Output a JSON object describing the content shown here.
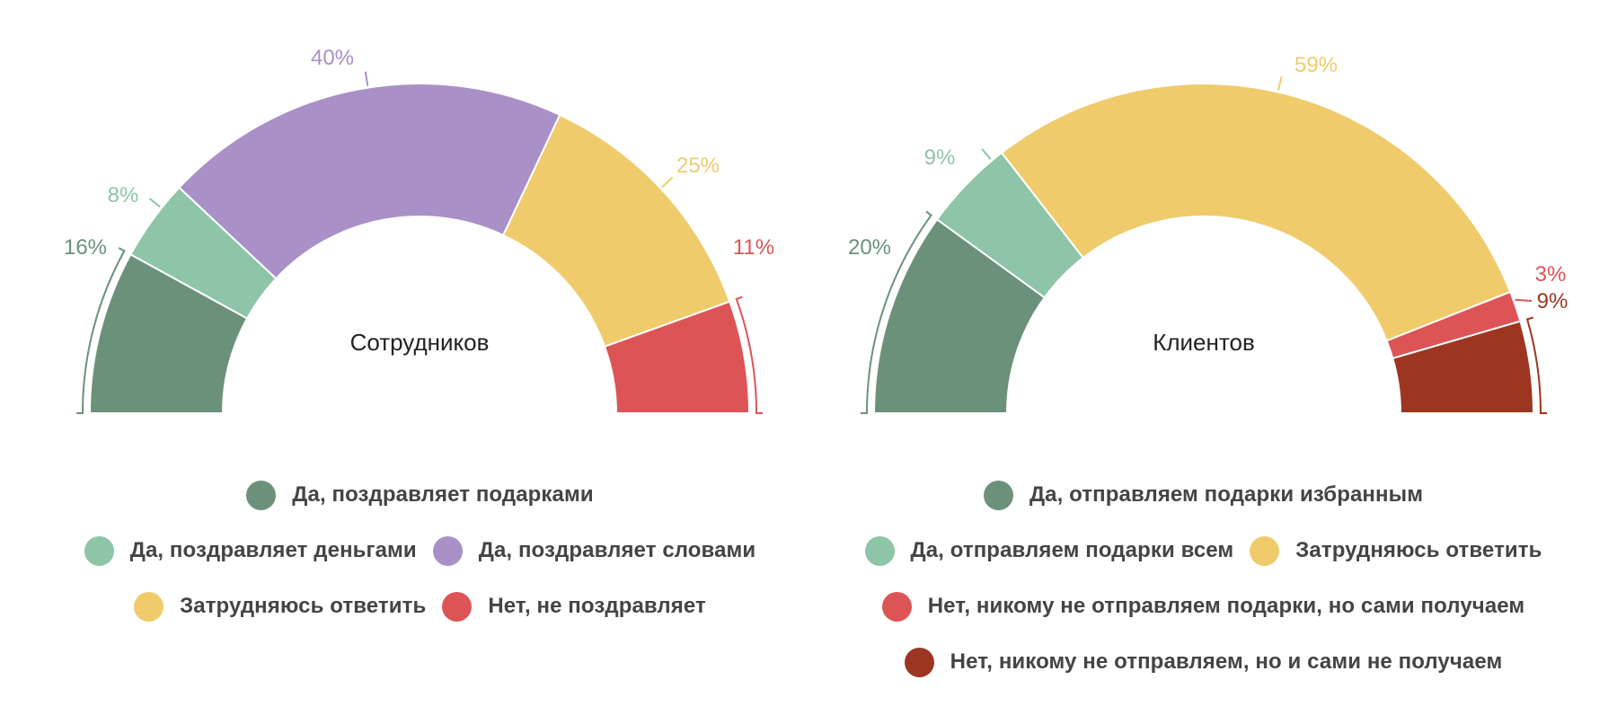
{
  "chart_data": [
    {
      "type": "pie",
      "variant": "semi-donut",
      "title": "",
      "center_label": "Сотрудников",
      "slices": [
        {
          "label": "Да, поздравляет подарками",
          "value": 16,
          "value_label": "16%",
          "color": "#6b917b"
        },
        {
          "label": "Да, поздравляет деньгами",
          "value": 8,
          "value_label": "8%",
          "color": "#8ec4a8"
        },
        {
          "label": "Да, поздравляет словами",
          "value": 40,
          "value_label": "40%",
          "color": "#a990c7"
        },
        {
          "label": "Затрудняюсь ответить",
          "value": 25,
          "value_label": "25%",
          "color": "#efcb6b"
        },
        {
          "label": "Нет, не поздравляет",
          "value": 11,
          "value_label": "11%",
          "color": "#dd5457"
        }
      ],
      "legend_rows": [
        [
          0
        ],
        [
          1,
          2
        ],
        [
          3,
          4
        ]
      ],
      "legend_position": "bottom"
    },
    {
      "type": "pie",
      "variant": "semi-donut",
      "title": "",
      "center_label": "Клиентов",
      "slices": [
        {
          "label": "Да, отправляем подарки избранным",
          "value": 20,
          "value_label": "20%",
          "color": "#6b917b"
        },
        {
          "label": "Да, отправляем подарки всем",
          "value": 9,
          "value_label": "9%",
          "color": "#8ec4a8"
        },
        {
          "label": "Затрудняюсь ответить",
          "value": 59,
          "value_label": "59%",
          "color": "#efcb6b"
        },
        {
          "label": "Нет, никому не отправляем подарки, но сами получаем",
          "value": 3,
          "value_label": "3%",
          "color": "#dd5457"
        },
        {
          "label": "Нет, никому не отправляем, но и сами не получаем",
          "value": 9,
          "value_label": "9%",
          "color": "#9c3620"
        }
      ],
      "legend_rows": [
        [
          0
        ],
        [
          1,
          2
        ],
        [
          3
        ],
        [
          4
        ]
      ],
      "legend_position": "bottom"
    }
  ]
}
